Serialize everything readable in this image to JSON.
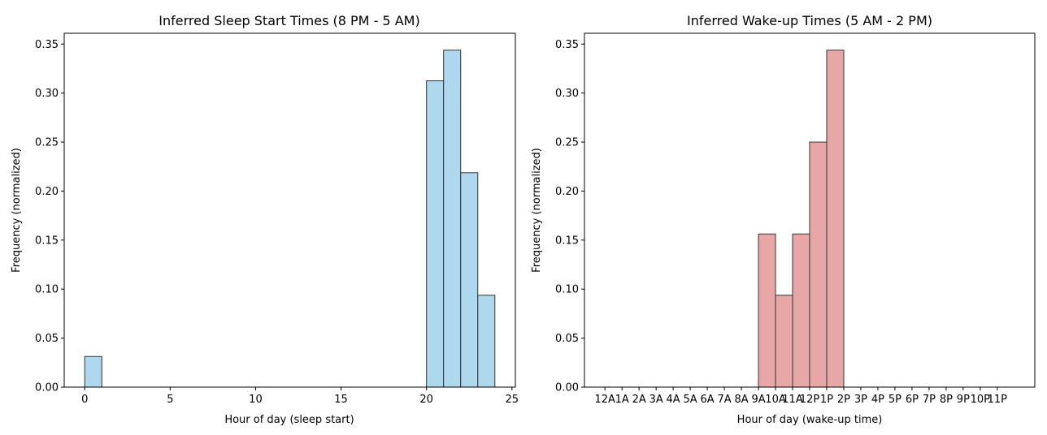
{
  "chart_data": [
    {
      "type": "bar",
      "title": "Inferred Sleep Start Times (8 PM - 5 AM)",
      "xlabel": "Hour of day (sleep start)",
      "ylabel": "Frequency (normalized)",
      "xlim": [
        -1.2,
        25.2
      ],
      "ylim": [
        0,
        0.361
      ],
      "xticks": [
        0,
        5,
        10,
        15,
        20,
        25
      ],
      "xtick_labels": [
        "0",
        "5",
        "10",
        "15",
        "20",
        "25"
      ],
      "yticks": [
        0.0,
        0.05,
        0.1,
        0.15,
        0.2,
        0.25,
        0.3,
        0.35
      ],
      "ytick_labels": [
        "0.00",
        "0.05",
        "0.10",
        "0.15",
        "0.20",
        "0.25",
        "0.30",
        "0.35"
      ],
      "bins": [
        [
          0,
          1
        ],
        [
          20,
          21
        ],
        [
          21,
          22
        ],
        [
          22,
          23
        ],
        [
          23,
          24
        ]
      ],
      "values": [
        0.03125,
        0.3125,
        0.34375,
        0.21875,
        0.09375
      ],
      "bar_color": "#add8ee",
      "edge_color": "#333333",
      "grid": false
    },
    {
      "type": "bar",
      "title": "Inferred Wake-up Times (5 AM - 2 PM)",
      "xlabel": "Hour of day (wake-up time)",
      "ylabel": "Frequency (normalized)",
      "xlim": [
        -1.2,
        25.2
      ],
      "ylim": [
        0,
        0.361
      ],
      "xticks": [
        0,
        1,
        2,
        3,
        4,
        5,
        6,
        7,
        8,
        9,
        10,
        11,
        12,
        13,
        14,
        15,
        16,
        17,
        18,
        19,
        20,
        21,
        22,
        23
      ],
      "xtick_labels": [
        "12A",
        "1A",
        "2A",
        "3A",
        "4A",
        "5A",
        "6A",
        "7A",
        "8A",
        "9A",
        "10A",
        "11A",
        "12P",
        "1P",
        "2P",
        "3P",
        "4P",
        "5P",
        "6P",
        "7P",
        "8P",
        "9P",
        "10P",
        "11P"
      ],
      "yticks": [
        0.0,
        0.05,
        0.1,
        0.15,
        0.2,
        0.25,
        0.3,
        0.35
      ],
      "ytick_labels": [
        "0.00",
        "0.05",
        "0.10",
        "0.15",
        "0.20",
        "0.25",
        "0.30",
        "0.35"
      ],
      "bins": [
        [
          9,
          10
        ],
        [
          10,
          11
        ],
        [
          11,
          12
        ],
        [
          12,
          13
        ],
        [
          13,
          14
        ]
      ],
      "values": [
        0.15625,
        0.09375,
        0.15625,
        0.25,
        0.34375
      ],
      "bar_color": "#e8a7a7",
      "edge_color": "#333333",
      "grid": false
    }
  ]
}
